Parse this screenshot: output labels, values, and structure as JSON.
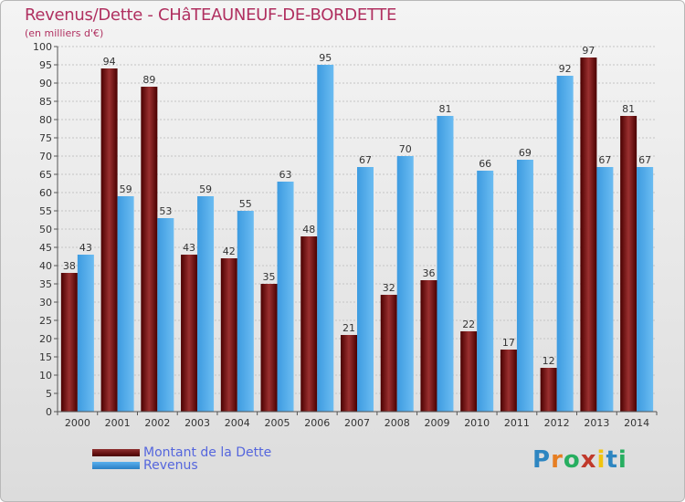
{
  "chart_data": {
    "type": "bar",
    "title": "Revenus/Dette - CHâTEAUNEUF-DE-BORDETTE",
    "subtitle": "(en milliers d'€)",
    "categories": [
      "2000",
      "2001",
      "2002",
      "2003",
      "2004",
      "2005",
      "2006",
      "2007",
      "2008",
      "2009",
      "2010",
      "2011",
      "2012",
      "2013",
      "2014"
    ],
    "series": [
      {
        "name": "Montant de la Dette",
        "color": "#7a1a1a",
        "values": [
          38,
          94,
          89,
          43,
          42,
          35,
          48,
          21,
          32,
          36,
          22,
          17,
          12,
          97,
          81
        ]
      },
      {
        "name": "Revenus",
        "color": "#3d9be0",
        "values": [
          43,
          59,
          53,
          59,
          55,
          63,
          95,
          67,
          70,
          81,
          66,
          69,
          92,
          67,
          67
        ]
      }
    ],
    "ylim": [
      0,
      100
    ],
    "yticks": [
      0,
      5,
      10,
      15,
      20,
      25,
      30,
      35,
      40,
      45,
      50,
      55,
      60,
      65,
      70,
      75,
      80,
      85,
      90,
      95,
      100
    ],
    "grid": true,
    "legend_position": "bottom-left"
  },
  "logo": {
    "text": "Proxiti",
    "letters": [
      "P",
      "r",
      "o",
      "x",
      "i",
      "t",
      "i"
    ],
    "colors": [
      "#2e86c1",
      "#e67e22",
      "#27ae60",
      "#c0392b",
      "#f1c40f",
      "#2e86c1",
      "#27ae60"
    ]
  }
}
